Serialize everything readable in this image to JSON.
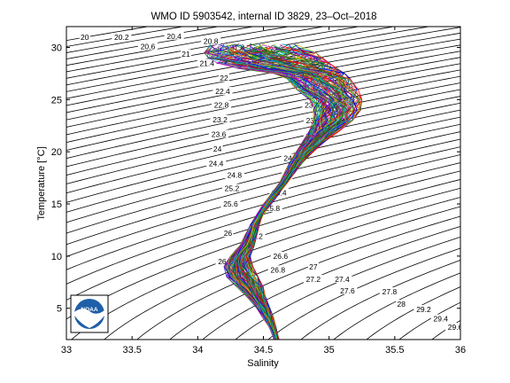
{
  "chart_data": {
    "type": "line",
    "title": "WMO ID 5903542, internal ID 3829, 23–Oct–2018",
    "xlabel": "Salinity",
    "ylabel": "Temperature [°C]",
    "xlim": [
      33,
      36
    ],
    "ylim": [
      2,
      32
    ],
    "xticks": [
      "33",
      "33.5",
      "34",
      "34.5",
      "35",
      "35.5",
      "36"
    ],
    "yticks": [
      "5",
      "10",
      "15",
      "20",
      "25",
      "30"
    ],
    "grid": false,
    "legend": "none",
    "logo_text": "NOAA",
    "density_contours": {
      "levels": [
        20.0,
        20.2,
        20.4,
        20.6,
        20.8,
        21.0,
        21.2,
        21.4,
        21.6,
        21.8,
        22.0,
        22.2,
        22.4,
        22.6,
        22.8,
        23.0,
        23.2,
        23.4,
        23.6,
        23.8,
        24.0,
        24.2,
        24.4,
        24.6,
        24.8,
        25.0,
        25.2,
        25.4,
        25.6,
        25.8,
        26.0,
        26.2,
        26.4,
        26.6,
        26.8,
        27.0,
        27.2,
        27.4,
        27.6,
        27.8,
        28.0,
        28.2,
        28.4,
        28.6,
        28.8,
        29.0,
        29.2,
        29.4,
        29.6,
        29.8
      ],
      "labels": [
        {
          "text": "20",
          "s": 33.14,
          "t": 30.9
        },
        {
          "text": "20.2",
          "s": 33.42,
          "t": 30.9
        },
        {
          "text": "20.4",
          "s": 33.82,
          "t": 31.0
        },
        {
          "text": "20.6",
          "s": 33.62,
          "t": 30.0
        },
        {
          "text": "20.8",
          "s": 34.1,
          "t": 30.5
        },
        {
          "text": "21",
          "s": 33.91,
          "t": 29.3
        },
        {
          "text": "21.4",
          "s": 34.07,
          "t": 28.4
        },
        {
          "text": "22",
          "s": 34.2,
          "t": 27.0
        },
        {
          "text": "22.4",
          "s": 34.19,
          "t": 25.7
        },
        {
          "text": "22.8",
          "s": 34.18,
          "t": 24.4
        },
        {
          "text": "23.2",
          "s": 34.17,
          "t": 23.0
        },
        {
          "text": "23.6",
          "s": 34.16,
          "t": 21.6
        },
        {
          "text": "24",
          "s": 34.15,
          "t": 20.2
        },
        {
          "text": "24.4",
          "s": 34.14,
          "t": 18.8
        },
        {
          "text": "24.8",
          "s": 34.28,
          "t": 17.7
        },
        {
          "text": "25.2",
          "s": 34.26,
          "t": 16.4
        },
        {
          "text": "25.6",
          "s": 34.25,
          "t": 14.9
        },
        {
          "text": "26",
          "s": 34.23,
          "t": 12.1
        },
        {
          "text": "26.4",
          "s": 34.21,
          "t": 9.4
        },
        {
          "text": "24.6",
          "s": 34.71,
          "t": 19.3
        },
        {
          "text": "25",
          "s": 34.68,
          "t": 17.6
        },
        {
          "text": "25.4",
          "s": 34.62,
          "t": 16.0
        },
        {
          "text": "25.8",
          "s": 34.57,
          "t": 14.5
        },
        {
          "text": "26.2",
          "s": 34.44,
          "t": 11.8
        },
        {
          "text": "26.6",
          "s": 34.63,
          "t": 9.9
        },
        {
          "text": "26.8",
          "s": 34.61,
          "t": 8.6
        },
        {
          "text": "27",
          "s": 34.88,
          "t": 8.9
        },
        {
          "text": "27.2",
          "s": 34.88,
          "t": 7.7
        },
        {
          "text": "27.4",
          "s": 35.1,
          "t": 7.7
        },
        {
          "text": "27.6",
          "s": 35.14,
          "t": 6.6
        },
        {
          "text": "27.8",
          "s": 35.46,
          "t": 6.5
        },
        {
          "text": "28",
          "s": 35.55,
          "t": 5.3
        },
        {
          "text": "29.2",
          "s": 35.72,
          "t": 4.8
        },
        {
          "text": "29.4",
          "s": 35.85,
          "t": 3.9
        },
        {
          "text": "29.6",
          "s": 35.96,
          "t": 3.1
        },
        {
          "text": "23.4",
          "s": 34.87,
          "t": 24.4
        },
        {
          "text": "23.8",
          "s": 34.88,
          "t": 22.9
        },
        {
          "text": "24.2",
          "s": 34.88,
          "t": 21.4
        },
        {
          "text": "22.6",
          "s": 34.6,
          "t": 29.7
        },
        {
          "text": "22.2",
          "s": 34.48,
          "t": 29.7
        },
        {
          "text": "21.8",
          "s": 34.3,
          "t": 29.9
        }
      ]
    },
    "profile_envelope": [
      {
        "t": 30.0,
        "s_min": 34.1,
        "s_max": 34.8
      },
      {
        "t": 29.5,
        "s_min": 34.05,
        "s_max": 34.9
      },
      {
        "t": 29.0,
        "s_min": 34.08,
        "s_max": 34.95
      },
      {
        "t": 28.5,
        "s_min": 34.15,
        "s_max": 35.0
      },
      {
        "t": 28.0,
        "s_min": 34.3,
        "s_max": 35.06
      },
      {
        "t": 27.5,
        "s_min": 34.58,
        "s_max": 35.12
      },
      {
        "t": 27.0,
        "s_min": 34.68,
        "s_max": 35.16
      },
      {
        "t": 26.0,
        "s_min": 34.75,
        "s_max": 35.22
      },
      {
        "t": 25.0,
        "s_min": 34.85,
        "s_max": 35.25
      },
      {
        "t": 24.0,
        "s_min": 34.88,
        "s_max": 35.24
      },
      {
        "t": 23.0,
        "s_min": 34.88,
        "s_max": 35.18
      },
      {
        "t": 22.0,
        "s_min": 34.85,
        "s_max": 35.08
      },
      {
        "t": 21.0,
        "s_min": 34.8,
        "s_max": 34.97
      },
      {
        "t": 20.0,
        "s_min": 34.75,
        "s_max": 34.88
      },
      {
        "t": 19.0,
        "s_min": 34.7,
        "s_max": 34.8
      },
      {
        "t": 18.0,
        "s_min": 34.66,
        "s_max": 34.74
      },
      {
        "t": 17.0,
        "s_min": 34.62,
        "s_max": 34.68
      },
      {
        "t": 16.0,
        "s_min": 34.56,
        "s_max": 34.62
      },
      {
        "t": 15.0,
        "s_min": 34.5,
        "s_max": 34.56
      },
      {
        "t": 14.0,
        "s_min": 34.45,
        "s_max": 34.5
      },
      {
        "t": 13.0,
        "s_min": 34.4,
        "s_max": 34.47
      },
      {
        "t": 12.0,
        "s_min": 34.36,
        "s_max": 34.45
      },
      {
        "t": 11.0,
        "s_min": 34.32,
        "s_max": 34.43
      },
      {
        "t": 10.0,
        "s_min": 34.25,
        "s_max": 34.4
      },
      {
        "t": 9.0,
        "s_min": 34.2,
        "s_max": 34.42
      },
      {
        "t": 8.0,
        "s_min": 34.22,
        "s_max": 34.46
      },
      {
        "t": 7.0,
        "s_min": 34.3,
        "s_max": 34.5
      },
      {
        "t": 6.0,
        "s_min": 34.38,
        "s_max": 34.52
      },
      {
        "t": 5.0,
        "s_min": 34.45,
        "s_max": 34.55
      },
      {
        "t": 4.0,
        "s_min": 34.5,
        "s_max": 34.58
      },
      {
        "t": 3.0,
        "s_min": 34.55,
        "s_max": 34.6
      },
      {
        "t": 2.0,
        "s_min": 34.58,
        "s_max": 34.62
      }
    ],
    "profile_colors": [
      "#0000ff",
      "#008000",
      "#ff0000",
      "#00bfbf",
      "#bf00bf",
      "#bfbf00",
      "#404040"
    ],
    "profile_count": 130
  }
}
